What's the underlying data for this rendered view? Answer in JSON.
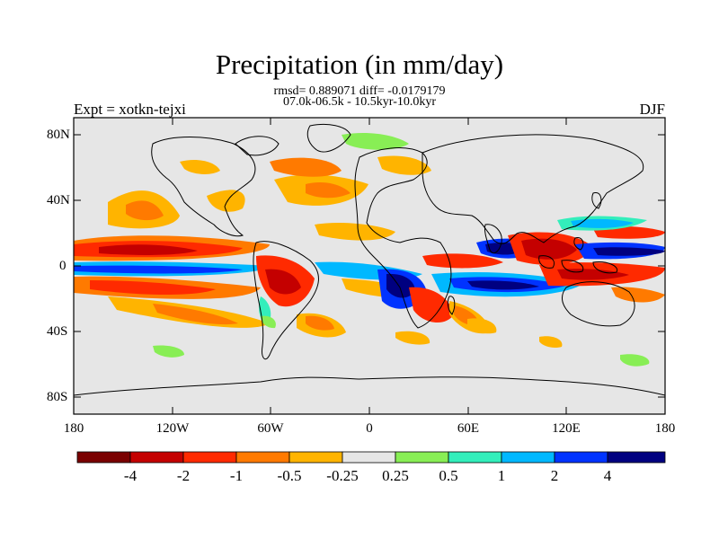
{
  "title": "Precipitation (in mm/day)",
  "stats": "rmsd= 0.889071 diff= -0.0179179",
  "subtitle": "07.0k-06.5k - 10.5kyr-10.0kyr",
  "left_label": "Expt = xotkn-tejxi",
  "right_label": "DJF",
  "y_ticks": [
    "80N",
    "40N",
    "0",
    "40S",
    "80S"
  ],
  "x_ticks": [
    "180",
    "120W",
    "60W",
    "0",
    "60E",
    "120E",
    "180"
  ],
  "colors": {
    "ocean_land_neutral": "#e6e6e6",
    "bins": [
      "#7a0000",
      "#c40000",
      "#ff2a00",
      "#ff7a00",
      "#ffb400",
      "#e6e6e6",
      "#88ee55",
      "#33eebb",
      "#00b8ff",
      "#0033ff",
      "#000080"
    ]
  },
  "colorbar_labels": [
    "-4",
    "-2",
    "-1",
    "-0.5",
    "-0.25",
    "0.25",
    "0.5",
    "1",
    "2",
    "4"
  ]
}
